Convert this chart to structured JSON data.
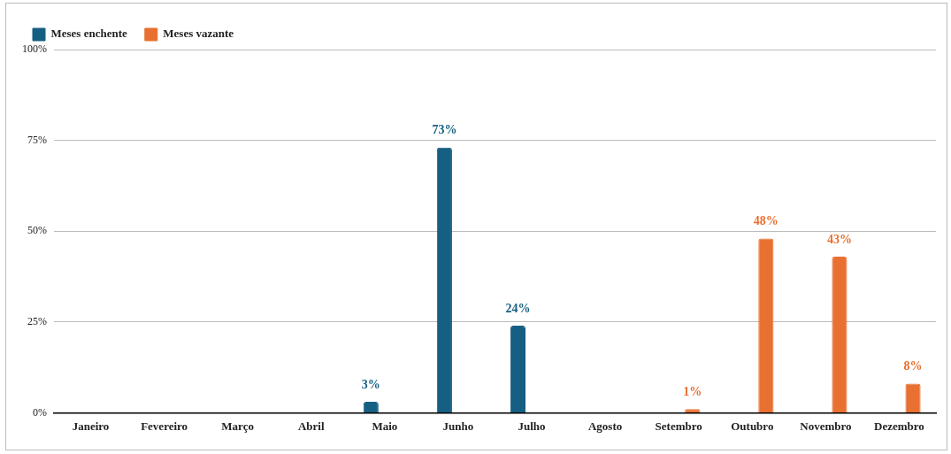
{
  "chart_data": {
    "type": "bar",
    "categories": [
      "Janeiro",
      "Fevereiro",
      "Março",
      "Abril",
      "Maio",
      "Junho",
      "Julho",
      "Agosto",
      "Setembro",
      "Outubro",
      "Novembro",
      "Dezembro"
    ],
    "series": [
      {
        "name": "Meses enchente",
        "color": "#155f83",
        "values": [
          null,
          null,
          null,
          null,
          3,
          73,
          24,
          null,
          null,
          null,
          null,
          null
        ],
        "value_labels": [
          null,
          null,
          null,
          null,
          "3%",
          "73%",
          "24%",
          null,
          null,
          null,
          null,
          null
        ]
      },
      {
        "name": "Meses vazante",
        "color": "#e87031",
        "values": [
          null,
          null,
          null,
          null,
          null,
          null,
          null,
          null,
          1,
          48,
          43,
          8
        ],
        "value_labels": [
          null,
          null,
          null,
          null,
          null,
          null,
          null,
          null,
          "1%",
          "48%",
          "43%",
          "8%"
        ]
      }
    ],
    "ylim": [
      0,
      100
    ],
    "yticks": [
      {
        "value": 0,
        "label": "0%"
      },
      {
        "value": 25,
        "label": "25%"
      },
      {
        "value": 50,
        "label": "50%"
      },
      {
        "value": 75,
        "label": "75%"
      },
      {
        "value": 100,
        "label": "100%"
      }
    ],
    "grid": "y",
    "legend": "top left"
  }
}
